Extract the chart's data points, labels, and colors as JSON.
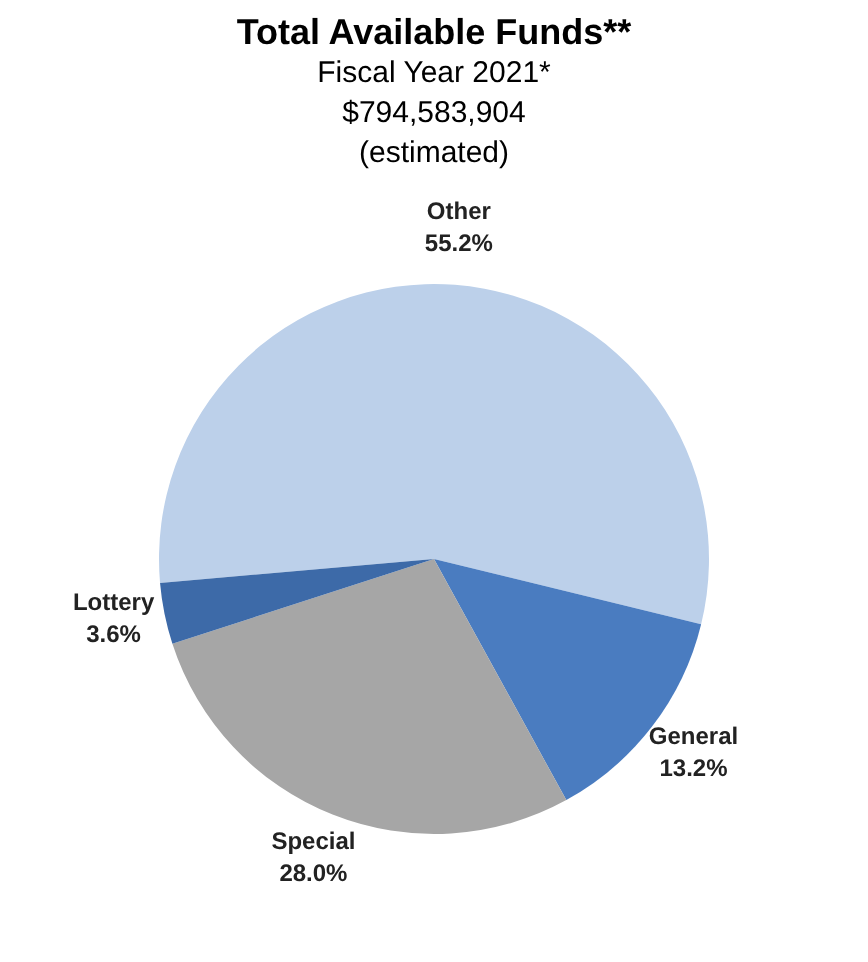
{
  "chart_data": {
    "type": "pie",
    "title": "Total Available Funds**",
    "subtitle": "Fiscal Year 2021*\n$794,583,904\n(estimated)",
    "categories": [
      "Other",
      "General",
      "Special",
      "Lottery"
    ],
    "values": [
      55.2,
      13.2,
      28.0,
      3.6
    ],
    "colors": [
      "#bcd0ea",
      "#4a7cc0",
      "#a6a6a6",
      "#3d6aa8"
    ],
    "value_labels": [
      "55.2%",
      "13.2%",
      "28.0%",
      "3.6%"
    ],
    "legend": false
  }
}
